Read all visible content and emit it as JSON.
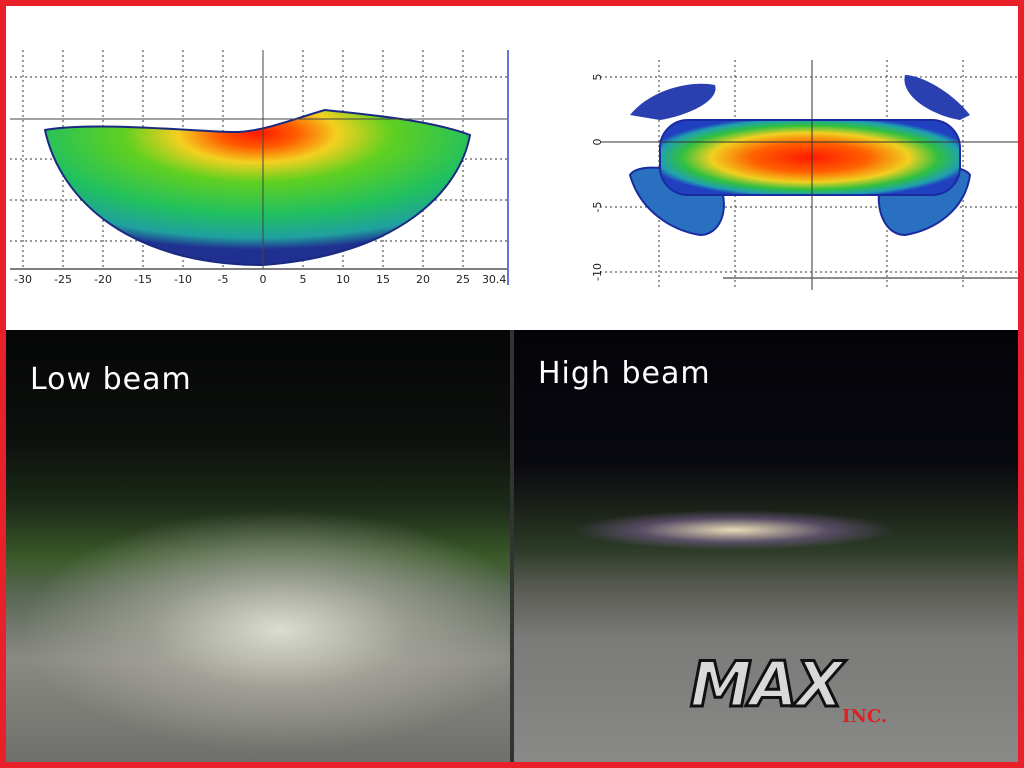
{
  "charts": {
    "low_beam_pattern": {
      "type": "heatmap",
      "x_ticks": [
        "-30",
        "-25",
        "-20",
        "-15",
        "-10",
        "-5",
        "0",
        "5",
        "10",
        "15",
        "20",
        "25",
        "30.4"
      ]
    },
    "high_beam_pattern": {
      "type": "heatmap",
      "y_ticks": [
        "5",
        "0",
        "-5",
        "-10"
      ]
    }
  },
  "photos": {
    "low_beam_label": "Low beam",
    "high_beam_label": "High beam"
  },
  "logo": {
    "text": "MAX",
    "suffix": "INC."
  },
  "colors": {
    "frame": "#e8202a",
    "hot": "#ff2000",
    "mid": "#f0e020",
    "low": "#20c040",
    "edge": "#2040c0"
  }
}
